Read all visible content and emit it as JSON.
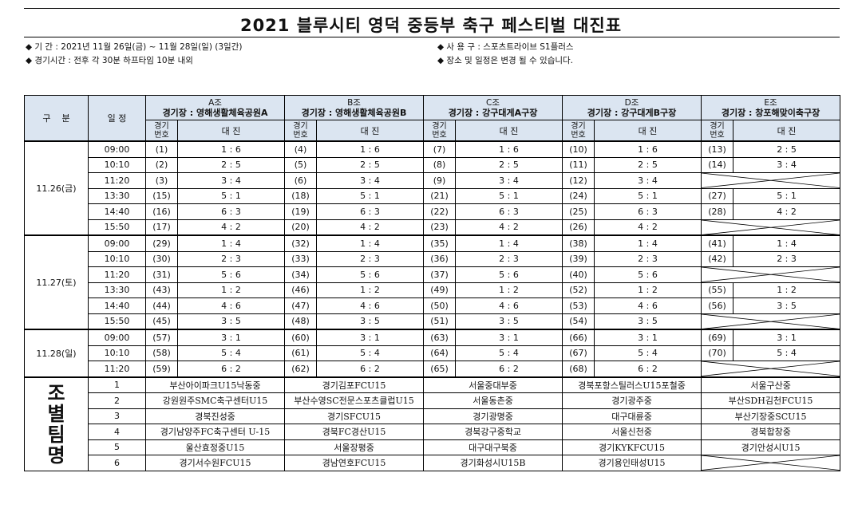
{
  "title": "2021 블루시티 영덕 중등부 축구 페스티벌 대진표",
  "info": {
    "period": "◆ 기    간 : 2021년 11월 26일(금) ~ 11월 28일(일) (3일간)",
    "game_time": "◆ 경기시간 : 전후 각 30분 하프타임 10분 내외",
    "venue_used": "◆ 사 용 구 : 스포츠트라이브 S1플러스",
    "notice": "◆ 장소 및 일정은 변경 될 수 있습니다."
  },
  "header": {
    "category": "구    분",
    "schedule": "일 정",
    "game_no": "경기\n번호",
    "match": "대  진",
    "groups": [
      {
        "name": "A조",
        "venue": "경기장 : 영해생활체육공원A"
      },
      {
        "name": "B조",
        "venue": "경기장 : 영해생활체육공원B"
      },
      {
        "name": "C조",
        "venue": "경기장 : 강구대게A구장"
      },
      {
        "name": "D조",
        "venue": "경기장 : 강구대게B구장"
      },
      {
        "name": "E조",
        "venue": "경기장 : 창포해맞이축구장"
      }
    ]
  },
  "days": [
    {
      "date": "11.26(금)",
      "rows": [
        {
          "time": "09:00",
          "cells": [
            [
              "(1)",
              "1 : 6"
            ],
            [
              "(4)",
              "1 : 6"
            ],
            [
              "(7)",
              "1 : 6"
            ],
            [
              "(10)",
              "1 : 6"
            ],
            [
              "(13)",
              "2 : 5"
            ]
          ]
        },
        {
          "time": "10:10",
          "cells": [
            [
              "(2)",
              "2 : 5"
            ],
            [
              "(5)",
              "2 : 5"
            ],
            [
              "(8)",
              "2 : 5"
            ],
            [
              "(11)",
              "2 : 5"
            ],
            [
              "(14)",
              "3 : 4"
            ]
          ]
        },
        {
          "time": "11:20",
          "cells": [
            [
              "(3)",
              "3 : 4"
            ],
            [
              "(6)",
              "3 : 4"
            ],
            [
              "(9)",
              "3 : 4"
            ],
            [
              "(12)",
              "3 : 4"
            ],
            null
          ]
        },
        {
          "time": "13:30",
          "cells": [
            [
              "(15)",
              "5 : 1"
            ],
            [
              "(18)",
              "5 : 1"
            ],
            [
              "(21)",
              "5 : 1"
            ],
            [
              "(24)",
              "5 : 1"
            ],
            [
              "(27)",
              "5 : 1"
            ]
          ]
        },
        {
          "time": "14:40",
          "cells": [
            [
              "(16)",
              "6 : 3"
            ],
            [
              "(19)",
              "6 : 3"
            ],
            [
              "(22)",
              "6 : 3"
            ],
            [
              "(25)",
              "6 : 3"
            ],
            [
              "(28)",
              "4 : 2"
            ]
          ]
        },
        {
          "time": "15:50",
          "cells": [
            [
              "(17)",
              "4 : 2"
            ],
            [
              "(20)",
              "4 : 2"
            ],
            [
              "(23)",
              "4 : 2"
            ],
            [
              "(26)",
              "4 : 2"
            ],
            null
          ]
        }
      ]
    },
    {
      "date": "11.27(토)",
      "rows": [
        {
          "time": "09:00",
          "cells": [
            [
              "(29)",
              "1 : 4"
            ],
            [
              "(32)",
              "1 : 4"
            ],
            [
              "(35)",
              "1 : 4"
            ],
            [
              "(38)",
              "1 : 4"
            ],
            [
              "(41)",
              "1 : 4"
            ]
          ]
        },
        {
          "time": "10:10",
          "cells": [
            [
              "(30)",
              "2 : 3"
            ],
            [
              "(33)",
              "2 : 3"
            ],
            [
              "(36)",
              "2 : 3"
            ],
            [
              "(39)",
              "2 : 3"
            ],
            [
              "(42)",
              "2 : 3"
            ]
          ]
        },
        {
          "time": "11:20",
          "cells": [
            [
              "(31)",
              "5 : 6"
            ],
            [
              "(34)",
              "5 : 6"
            ],
            [
              "(37)",
              "5 : 6"
            ],
            [
              "(40)",
              "5 : 6"
            ],
            null
          ]
        },
        {
          "time": "13:30",
          "cells": [
            [
              "(43)",
              "1 : 2"
            ],
            [
              "(46)",
              "1 : 2"
            ],
            [
              "(49)",
              "1 : 2"
            ],
            [
              "(52)",
              "1 : 2"
            ],
            [
              "(55)",
              "1 : 2"
            ]
          ]
        },
        {
          "time": "14:40",
          "cells": [
            [
              "(44)",
              "4 : 6"
            ],
            [
              "(47)",
              "4 : 6"
            ],
            [
              "(50)",
              "4 : 6"
            ],
            [
              "(53)",
              "4 : 6"
            ],
            [
              "(56)",
              "3 : 5"
            ]
          ]
        },
        {
          "time": "15:50",
          "cells": [
            [
              "(45)",
              "3 : 5"
            ],
            [
              "(48)",
              "3 : 5"
            ],
            [
              "(51)",
              "3 : 5"
            ],
            [
              "(54)",
              "3 : 5"
            ],
            null
          ]
        }
      ]
    },
    {
      "date": "11.28(일)",
      "rows": [
        {
          "time": "09:00",
          "cells": [
            [
              "(57)",
              "3 : 1"
            ],
            [
              "(60)",
              "3 : 1"
            ],
            [
              "(63)",
              "3 : 1"
            ],
            [
              "(66)",
              "3 : 1"
            ],
            [
              "(69)",
              "3 : 1"
            ]
          ]
        },
        {
          "time": "10:10",
          "cells": [
            [
              "(58)",
              "5 : 4"
            ],
            [
              "(61)",
              "5 : 4"
            ],
            [
              "(64)",
              "5 : 4"
            ],
            [
              "(67)",
              "5 : 4"
            ],
            [
              "(70)",
              "5 : 4"
            ]
          ]
        },
        {
          "time": "11:20",
          "cells": [
            [
              "(59)",
              "6 : 2"
            ],
            [
              "(62)",
              "6 : 2"
            ],
            [
              "(65)",
              "6 : 2"
            ],
            [
              "(68)",
              "6 : 2"
            ],
            null
          ]
        }
      ]
    }
  ],
  "teams": {
    "label": "조별팀명",
    "rows": [
      {
        "no": "1",
        "names": [
          "부산아이파크U15낙동중",
          "경기김포FCU15",
          "서울중대부중",
          "경북포항스틸러스U15포철중",
          "서울구산중"
        ]
      },
      {
        "no": "2",
        "names": [
          "강원원주SMC축구센터U15",
          "부산수영SC전문스포츠클럽U15",
          "서울동촌중",
          "경기광주중",
          "부산SDH김천FCU15"
        ]
      },
      {
        "no": "3",
        "names": [
          "경북진성중",
          "경기SFCU15",
          "경기광명중",
          "대구대륜중",
          "부산기장중SCU15"
        ]
      },
      {
        "no": "4",
        "names": [
          "경기남양주FC축구센터 U-15",
          "경북FC경산U15",
          "경북강구중학교",
          "서울신천중",
          "경북합창중"
        ]
      },
      {
        "no": "5",
        "names": [
          "울산효정중U15",
          "서울장평중",
          "대구대구북중",
          "경기KYKFCU15",
          "경기안성시U15"
        ]
      },
      {
        "no": "6",
        "names": [
          "경기서수원FCU15",
          "경남연호FCU15",
          "경기화성시U15B",
          "경기용인태성U15",
          null
        ]
      }
    ]
  }
}
